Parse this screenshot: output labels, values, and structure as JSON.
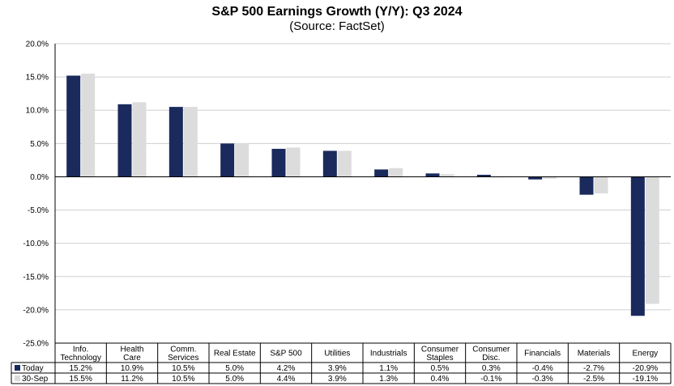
{
  "chart_data": {
    "type": "bar",
    "title": "S&P 500 Earnings Growth (Y/Y): Q3 2024",
    "subtitle": "(Source: FactSet)",
    "categories": [
      [
        "Info.",
        "Technology"
      ],
      [
        "Health",
        "Care"
      ],
      [
        "Comm.",
        "Services"
      ],
      [
        "Real Estate"
      ],
      [
        "S&P 500"
      ],
      [
        "Utilities"
      ],
      [
        "Industrials"
      ],
      [
        "Consumer",
        "Staples"
      ],
      [
        "Consumer",
        "Disc."
      ],
      [
        "Financials"
      ],
      [
        "Materials"
      ],
      [
        "Energy"
      ]
    ],
    "series": [
      {
        "name": "Today",
        "color": "#1a2a5c",
        "values": [
          15.2,
          10.9,
          10.5,
          5.0,
          4.2,
          3.9,
          1.1,
          0.5,
          0.3,
          -0.4,
          -2.7,
          -20.9
        ],
        "labels": [
          "15.2%",
          "10.9%",
          "10.5%",
          "5.0%",
          "4.2%",
          "3.9%",
          "1.1%",
          "0.5%",
          "0.3%",
          "-0.4%",
          "-2.7%",
          "-20.9%"
        ]
      },
      {
        "name": "30-Sep",
        "color": "#dcdcdc",
        "values": [
          15.5,
          11.2,
          10.5,
          5.0,
          4.4,
          3.9,
          1.3,
          0.4,
          -0.1,
          -0.3,
          -2.5,
          -19.1
        ],
        "labels": [
          "15.5%",
          "11.2%",
          "10.5%",
          "5.0%",
          "4.4%",
          "3.9%",
          "1.3%",
          "0.4%",
          "-0.1%",
          "-0.3%",
          "-2.5%",
          "-19.1%"
        ]
      }
    ],
    "ylim": [
      -25,
      20
    ],
    "yticks": [
      20,
      15,
      10,
      5,
      0,
      -5,
      -10,
      -15,
      -20,
      -25
    ],
    "ytick_labels": [
      "20.0%",
      "15.0%",
      "10.0%",
      "5.0%",
      "0.0%",
      "-5.0%",
      "-10.0%",
      "-15.0%",
      "-20.0%",
      "-25.0%"
    ],
    "grid": true,
    "legend": "data-table"
  }
}
